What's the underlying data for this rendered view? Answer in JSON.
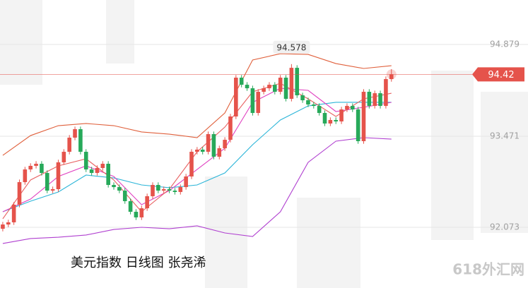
{
  "chart_data": {
    "type": "candlestick",
    "title": "美元指数 日线图 张尧浠",
    "watermark": "618外汇网",
    "x": [
      0,
      1,
      2,
      3,
      4,
      5,
      6,
      7,
      8,
      9,
      10,
      11,
      12,
      13,
      14,
      15,
      16,
      17,
      18,
      19,
      20,
      21,
      22,
      23,
      24,
      25,
      26,
      27,
      28,
      29,
      30,
      31,
      32,
      33,
      34,
      35,
      36,
      37,
      38,
      39,
      40,
      41,
      42,
      43,
      44,
      45,
      46,
      47,
      48,
      49,
      50,
      51,
      52,
      53,
      54,
      55,
      56,
      57,
      58,
      59,
      60,
      61,
      62,
      63,
      64,
      65,
      66,
      67,
      68,
      69,
      70
    ],
    "open": [
      92.05,
      92.116,
      92.149,
      92.42,
      92.766,
      92.961,
      93.016,
      93.048,
      92.907,
      92.636,
      92.658,
      93.07,
      93.232,
      93.449,
      93.579,
      93.232,
      92.961,
      92.907,
      92.983,
      93.048,
      92.723,
      92.69,
      92.636,
      92.474,
      92.311,
      92.225,
      92.365,
      92.55,
      92.723,
      92.636,
      92.658,
      92.636,
      92.615,
      92.69,
      92.853,
      93.232,
      93.265,
      93.232,
      93.503,
      93.156,
      93.286,
      93.416,
      93.774,
      94.37,
      94.261,
      94.207,
      93.828,
      94.153,
      94.207,
      94.261,
      94.153,
      94.37,
      94.045,
      94.521,
      94.099,
      94.023,
      93.958,
      93.936,
      93.828,
      93.666,
      93.72,
      93.698,
      93.882,
      93.936,
      93.882,
      93.395,
      94.153,
      93.936,
      94.131,
      93.936,
      94.348
    ],
    "high": [
      92.156,
      92.189,
      92.46,
      92.806,
      93.001,
      93.056,
      93.088,
      93.088,
      92.947,
      92.698,
      93.11,
      93.272,
      93.489,
      93.619,
      93.619,
      93.272,
      93.001,
      93.023,
      93.088,
      93.088,
      92.763,
      92.73,
      92.676,
      92.514,
      92.351,
      92.405,
      92.59,
      92.763,
      92.763,
      92.698,
      92.698,
      92.676,
      92.73,
      92.893,
      93.272,
      93.305,
      93.305,
      93.543,
      93.543,
      93.326,
      93.456,
      93.814,
      94.41,
      94.41,
      94.301,
      94.247,
      94.193,
      94.247,
      94.301,
      94.301,
      94.41,
      94.41,
      94.578,
      94.561,
      94.139,
      94.063,
      93.998,
      93.976,
      93.868,
      93.76,
      93.76,
      93.922,
      93.976,
      93.976,
      93.922,
      94.193,
      94.193,
      94.171,
      94.171,
      94.388,
      94.5
    ],
    "low": [
      92.01,
      92.076,
      92.109,
      92.38,
      92.726,
      92.921,
      92.976,
      92.867,
      92.596,
      92.596,
      92.618,
      93.03,
      93.192,
      93.409,
      93.192,
      92.921,
      92.867,
      92.867,
      92.943,
      92.683,
      92.65,
      92.596,
      92.434,
      92.271,
      92.185,
      92.185,
      92.325,
      92.51,
      92.596,
      92.596,
      92.596,
      92.575,
      92.575,
      92.65,
      92.813,
      93.192,
      93.192,
      93.192,
      93.116,
      93.116,
      93.246,
      93.376,
      93.734,
      94.221,
      94.167,
      93.788,
      93.788,
      94.113,
      94.167,
      94.113,
      94.113,
      94.005,
      94.005,
      94.059,
      93.983,
      93.918,
      93.896,
      93.788,
      93.626,
      93.626,
      93.658,
      93.658,
      93.842,
      93.842,
      93.355,
      93.355,
      93.896,
      93.896,
      93.896,
      93.896,
      94.308
    ],
    "close": [
      92.116,
      92.149,
      92.42,
      92.766,
      92.961,
      93.016,
      93.048,
      92.907,
      92.636,
      92.658,
      93.07,
      93.232,
      93.449,
      93.579,
      93.232,
      92.961,
      92.907,
      92.983,
      93.048,
      92.723,
      92.69,
      92.636,
      92.474,
      92.311,
      92.225,
      92.365,
      92.55,
      92.723,
      92.636,
      92.658,
      92.636,
      92.615,
      92.69,
      92.853,
      93.232,
      93.265,
      93.232,
      93.503,
      93.156,
      93.286,
      93.416,
      93.774,
      94.37,
      94.261,
      94.207,
      93.828,
      94.153,
      94.207,
      94.261,
      94.153,
      94.37,
      94.045,
      94.521,
      94.099,
      94.023,
      93.958,
      93.936,
      93.828,
      93.666,
      93.72,
      93.698,
      93.882,
      93.936,
      93.882,
      93.395,
      94.153,
      93.936,
      94.131,
      93.936,
      94.348,
      94.42
    ],
    "up_color": "#e5534b",
    "down_color": "#27a95a",
    "lines": [
      {
        "color": "#e0603c",
        "x": [
          0,
          5,
          10,
          15,
          20,
          25,
          30,
          35,
          40,
          45,
          50,
          55,
          60,
          65,
          70
        ],
        "values": [
          93.178,
          93.481,
          93.633,
          93.666,
          93.633,
          93.536,
          93.503,
          93.449,
          93.828,
          94.641,
          94.738,
          94.727,
          94.586,
          94.511,
          94.554
        ]
      },
      {
        "color": "#b040d0",
        "x": [
          0,
          5,
          10,
          15,
          20,
          25,
          30,
          35,
          40,
          45,
          50,
          55,
          60,
          65,
          70
        ],
        "values": [
          91.824,
          91.9,
          91.921,
          91.954,
          92.04,
          92.073,
          92.051,
          92.095,
          91.986,
          91.932,
          92.311,
          93.07,
          93.395,
          93.449,
          93.427
        ]
      },
      {
        "color": "#2bb5d8",
        "x": [
          0,
          5,
          10,
          15,
          20,
          25,
          30,
          35,
          40,
          45,
          50,
          55,
          60,
          65,
          70
        ],
        "values": [
          92.311,
          92.474,
          92.615,
          92.875,
          92.831,
          92.723,
          92.68,
          92.723,
          92.907,
          93.341,
          93.72,
          93.936,
          93.991,
          93.991,
          93.991
        ]
      },
      {
        "color": "#e040c0",
        "x": [
          0,
          5,
          10,
          15,
          20,
          25,
          30,
          35,
          40,
          45,
          50,
          55,
          60,
          65,
          70
        ],
        "values": [
          92.311,
          92.506,
          92.853,
          93.016,
          92.853,
          92.42,
          92.636,
          92.961,
          93.286,
          93.991,
          94.207,
          94.175,
          93.85,
          93.915,
          93.991
        ]
      },
      {
        "color": "#e86060",
        "x": [
          0,
          5,
          10,
          15,
          20,
          25,
          30,
          35,
          40,
          45,
          50,
          55,
          60,
          65,
          70
        ],
        "values": [
          92.203,
          92.799,
          93.016,
          93.124,
          92.799,
          92.311,
          92.658,
          93.232,
          93.611,
          94.153,
          94.283,
          94.045,
          93.774,
          94.045,
          94.131
        ]
      }
    ],
    "xlim": [
      -0.5,
      94.6
    ],
    "ylim": [
      91.141,
      95.562
    ],
    "yticks": [
      94.879,
      93.471,
      92.073
    ],
    "grid": true
  }
}
